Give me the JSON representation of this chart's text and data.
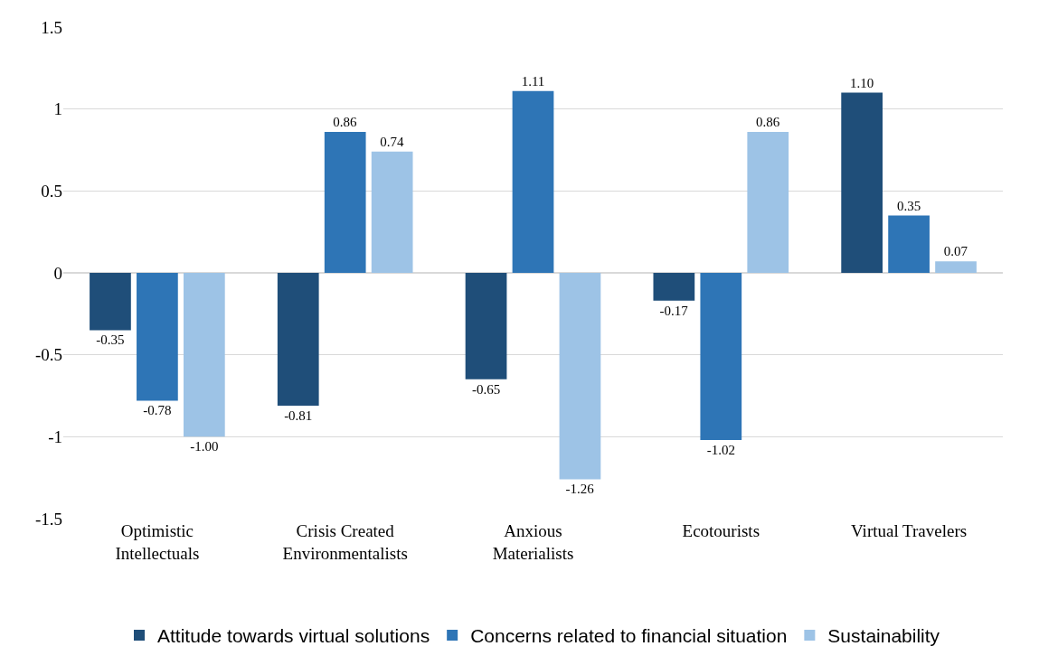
{
  "chart_data": {
    "type": "bar",
    "categories": [
      "Optimistic Intellectuals",
      "Crisis Created Environmentalists",
      "Anxious Materialists",
      "Ecotourists",
      "Virtual Travelers"
    ],
    "series": [
      {
        "name": "Attitude towards virtual solutions",
        "color": "#1f4e79",
        "values": [
          -0.35,
          -0.81,
          -0.65,
          -0.17,
          1.1
        ],
        "value_labels": [
          "-0.35",
          "-0.81",
          "-0.65",
          "-0.17",
          "1.10"
        ]
      },
      {
        "name": "Concerns related to financial situation",
        "color": "#2e75b6",
        "values": [
          -0.78,
          0.86,
          1.11,
          -1.02,
          0.35
        ],
        "value_labels": [
          "-0.78",
          "0.86",
          "1.11",
          "-1.02",
          "0.35"
        ]
      },
      {
        "name": "Sustainability",
        "color": "#9dc3e6",
        "values": [
          -1.0,
          0.74,
          -1.26,
          0.86,
          0.07
        ],
        "value_labels": [
          "-1.00",
          "0.74",
          "-1.26",
          "0.86",
          "0.07"
        ]
      }
    ],
    "ylim": [
      -1.5,
      1.5
    ],
    "yticks": [
      {
        "value": -1.5,
        "label": "-1.5"
      },
      {
        "value": -1,
        "label": "-1"
      },
      {
        "value": -0.5,
        "label": "-0.5"
      },
      0,
      0.5,
      1,
      1.5
    ],
    "grid": "y",
    "legend": "bottom"
  }
}
